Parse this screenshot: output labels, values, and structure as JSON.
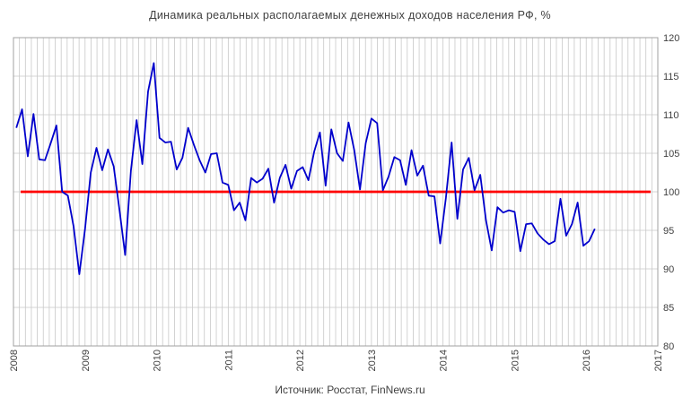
{
  "chart_data": {
    "type": "line",
    "title": "Динамика реальных располагаемых денежных доходов населения РФ, %",
    "source": "Источник: Росстат, FinNews.ru",
    "xlabel": "",
    "ylabel": "",
    "x_tick_labels": [
      "2008",
      "2009",
      "2010",
      "2011",
      "2012",
      "2013",
      "2014",
      "2015",
      "2016",
      "2017"
    ],
    "xlim": [
      2008,
      2017
    ],
    "y_tick_labels": [
      "80",
      "85",
      "90",
      "95",
      "100",
      "105",
      "110",
      "115",
      "120"
    ],
    "ylim": [
      80,
      120
    ],
    "grid": true,
    "colors": {
      "series": "#0000cc",
      "baseline": "#ff0000",
      "grid": "#c8c8c8"
    },
    "baseline": {
      "y": 100,
      "x_start": 2008.1,
      "x_end": 2016.9
    },
    "series": [
      {
        "values": [
          [
            2008.04,
            108.3
          ],
          [
            2008.12,
            110.7
          ],
          [
            2008.2,
            104.6
          ],
          [
            2008.28,
            110.1
          ],
          [
            2008.36,
            104.2
          ],
          [
            2008.44,
            104.1
          ],
          [
            2008.52,
            106.3
          ],
          [
            2008.6,
            108.6
          ],
          [
            2008.68,
            100.0
          ],
          [
            2008.76,
            99.5
          ],
          [
            2008.84,
            95.5
          ],
          [
            2008.92,
            89.3
          ],
          [
            2009.0,
            95.2
          ],
          [
            2009.08,
            102.5
          ],
          [
            2009.16,
            105.7
          ],
          [
            2009.24,
            102.8
          ],
          [
            2009.32,
            105.5
          ],
          [
            2009.4,
            103.3
          ],
          [
            2009.48,
            97.7
          ],
          [
            2009.56,
            91.8
          ],
          [
            2009.64,
            102.7
          ],
          [
            2009.72,
            109.3
          ],
          [
            2009.8,
            103.6
          ],
          [
            2009.88,
            113.0
          ],
          [
            2009.96,
            116.7
          ],
          [
            2010.04,
            107.0
          ],
          [
            2010.12,
            106.4
          ],
          [
            2010.2,
            106.5
          ],
          [
            2010.28,
            102.9
          ],
          [
            2010.36,
            104.4
          ],
          [
            2010.44,
            108.3
          ],
          [
            2010.52,
            106.1
          ],
          [
            2010.6,
            104.1
          ],
          [
            2010.68,
            102.5
          ],
          [
            2010.76,
            104.9
          ],
          [
            2010.84,
            105.0
          ],
          [
            2010.92,
            101.2
          ],
          [
            2011.0,
            100.9
          ],
          [
            2011.08,
            97.6
          ],
          [
            2011.16,
            98.6
          ],
          [
            2011.24,
            96.3
          ],
          [
            2011.32,
            101.8
          ],
          [
            2011.4,
            101.2
          ],
          [
            2011.48,
            101.7
          ],
          [
            2011.56,
            103.0
          ],
          [
            2011.64,
            98.6
          ],
          [
            2011.72,
            101.8
          ],
          [
            2011.8,
            103.5
          ],
          [
            2011.88,
            100.4
          ],
          [
            2011.96,
            102.7
          ],
          [
            2012.04,
            103.2
          ],
          [
            2012.12,
            101.5
          ],
          [
            2012.2,
            105.2
          ],
          [
            2012.28,
            107.7
          ],
          [
            2012.36,
            100.8
          ],
          [
            2012.44,
            108.1
          ],
          [
            2012.52,
            105.0
          ],
          [
            2012.6,
            104.0
          ],
          [
            2012.68,
            109.0
          ],
          [
            2012.76,
            105.4
          ],
          [
            2012.84,
            100.3
          ],
          [
            2012.92,
            106.3
          ],
          [
            2013.0,
            109.5
          ],
          [
            2013.08,
            108.9
          ],
          [
            2013.16,
            100.2
          ],
          [
            2013.24,
            102.0
          ],
          [
            2013.32,
            104.5
          ],
          [
            2013.4,
            104.1
          ],
          [
            2013.48,
            100.9
          ],
          [
            2013.56,
            105.4
          ],
          [
            2013.64,
            102.1
          ],
          [
            2013.72,
            103.4
          ],
          [
            2013.8,
            99.5
          ],
          [
            2013.88,
            99.4
          ],
          [
            2013.96,
            93.3
          ],
          [
            2014.04,
            99.2
          ],
          [
            2014.12,
            106.4
          ],
          [
            2014.2,
            96.5
          ],
          [
            2014.28,
            102.9
          ],
          [
            2014.36,
            104.4
          ],
          [
            2014.44,
            100.2
          ],
          [
            2014.52,
            102.2
          ],
          [
            2014.6,
            96.3
          ],
          [
            2014.68,
            92.4
          ],
          [
            2014.76,
            98.0
          ],
          [
            2014.84,
            97.3
          ],
          [
            2014.92,
            97.6
          ],
          [
            2015.0,
            97.4
          ],
          [
            2015.08,
            92.3
          ],
          [
            2015.16,
            95.8
          ],
          [
            2015.24,
            95.9
          ],
          [
            2015.32,
            94.6
          ],
          [
            2015.4,
            93.8
          ],
          [
            2015.48,
            93.2
          ],
          [
            2015.56,
            93.6
          ],
          [
            2015.64,
            99.1
          ],
          [
            2015.72,
            94.3
          ],
          [
            2015.8,
            95.8
          ],
          [
            2015.88,
            98.6
          ],
          [
            2015.96,
            93.0
          ],
          [
            2016.04,
            93.6
          ],
          [
            2016.12,
            95.2
          ]
        ]
      }
    ]
  }
}
